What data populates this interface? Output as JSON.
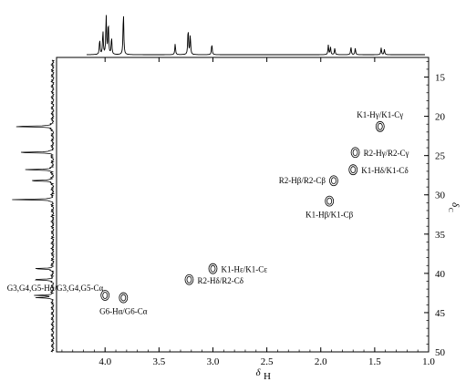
{
  "chart_data": {
    "type": "2D-NMR contour (HSQC)",
    "xaxis": {
      "label_main": "δ",
      "label_sub": "H",
      "range": [
        4.45,
        1.0
      ],
      "reversed": true,
      "ticks": [
        "4.0",
        "3.5",
        "3.0",
        "2.5",
        "2.0",
        "1.5",
        "1.0"
      ],
      "tick_values": [
        4.0,
        3.5,
        3.0,
        2.5,
        2.0,
        1.5,
        1.0
      ]
    },
    "yaxis": {
      "label_main": "δ",
      "label_sub": "C",
      "range": [
        12.5,
        50.0
      ],
      "reversed": true,
      "position": "right",
      "ticks": [
        "15",
        "20",
        "25",
        "30",
        "35",
        "40",
        "45",
        "50"
      ],
      "tick_values": [
        15,
        20,
        25,
        30,
        35,
        40,
        45,
        50
      ]
    },
    "cross_peaks": [
      {
        "label": "K1-Hγ/K1-Cγ",
        "h": 1.45,
        "c": 21.3,
        "label_pos": "above"
      },
      {
        "label": "R2-Hγ/R2-Cγ",
        "h": 1.68,
        "c": 24.6,
        "label_pos": "right"
      },
      {
        "label": "K1-Hδ/K1-Cδ",
        "h": 1.7,
        "c": 26.8,
        "label_pos": "right"
      },
      {
        "label": "R2-Hβ/R2-Cβ",
        "h": 1.88,
        "c": 28.2,
        "label_pos": "left"
      },
      {
        "label": "K1-Hβ/K1-Cβ",
        "h": 1.92,
        "c": 30.8,
        "label_pos": "below"
      },
      {
        "label": "K1-Hε/K1-Cε",
        "h": 3.0,
        "c": 39.4,
        "label_pos": "right"
      },
      {
        "label": "R2-Hδ/R2-Cδ",
        "h": 3.22,
        "c": 40.8,
        "label_pos": "right"
      },
      {
        "label": "G3,G4,G5-Hα/G3,G4,G5-Cα",
        "h": 4.0,
        "c": 42.8,
        "label_pos": "above-left"
      },
      {
        "label": "G6-Hα/G6-Cα",
        "h": 3.83,
        "c": 43.1,
        "label_pos": "below"
      }
    ],
    "projection_1h_peaks": [
      {
        "h": 4.05,
        "height": 0.35
      },
      {
        "h": 4.02,
        "height": 0.55
      },
      {
        "h": 3.99,
        "height": 0.9
      },
      {
        "h": 3.97,
        "height": 0.75
      },
      {
        "h": 3.94,
        "height": 0.4
      },
      {
        "h": 3.83,
        "height": 1.0
      },
      {
        "h": 3.35,
        "height": 0.25
      },
      {
        "h": 3.23,
        "height": 0.6
      },
      {
        "h": 3.21,
        "height": 0.45
      },
      {
        "h": 3.01,
        "height": 0.25
      },
      {
        "h": 1.93,
        "height": 0.22
      },
      {
        "h": 1.91,
        "height": 0.18
      },
      {
        "h": 1.87,
        "height": 0.15
      },
      {
        "h": 1.72,
        "height": 0.18
      },
      {
        "h": 1.68,
        "height": 0.15
      },
      {
        "h": 1.44,
        "height": 0.16
      },
      {
        "h": 1.41,
        "height": 0.12
      }
    ],
    "projection_13c_peaks": [
      {
        "c": 21.3,
        "height": 1.0
      },
      {
        "c": 24.6,
        "height": 0.85
      },
      {
        "c": 26.8,
        "height": 0.7
      },
      {
        "c": 28.2,
        "height": 0.6
      },
      {
        "c": 30.6,
        "height": 0.9
      },
      {
        "c": 39.4,
        "height": 0.45
      },
      {
        "c": 40.8,
        "height": 0.5
      },
      {
        "c": 42.8,
        "height": 0.4
      },
      {
        "c": 43.1,
        "height": 0.35
      }
    ]
  }
}
